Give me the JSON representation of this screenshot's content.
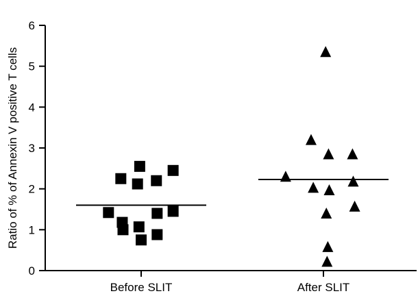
{
  "chart_data": {
    "type": "scatter",
    "ylabel": "Ratio of % of Annexin V positive T cells",
    "xlabel": "",
    "ylim": [
      0,
      6
    ],
    "yticks": [
      "0",
      "1",
      "2",
      "3",
      "4",
      "5",
      "6"
    ],
    "categories": [
      "Before SLIT",
      "After SLIT"
    ],
    "grid": false,
    "series": [
      {
        "category": "Before SLIT",
        "marker": "square",
        "mean": 1.6,
        "points": [
          {
            "offset": -0.45,
            "y": 1.42
          },
          {
            "offset": -0.28,
            "y": 2.25
          },
          {
            "offset": -0.26,
            "y": 1.18
          },
          {
            "offset": -0.25,
            "y": 1.0
          },
          {
            "offset": -0.02,
            "y": 2.55
          },
          {
            "offset": -0.05,
            "y": 2.12
          },
          {
            "offset": -0.03,
            "y": 1.07
          },
          {
            "offset": 0.0,
            "y": 0.75
          },
          {
            "offset": 0.21,
            "y": 2.2
          },
          {
            "offset": 0.22,
            "y": 1.4
          },
          {
            "offset": 0.22,
            "y": 0.88
          },
          {
            "offset": 0.44,
            "y": 2.45
          },
          {
            "offset": 0.44,
            "y": 1.45
          }
        ]
      },
      {
        "category": "After SLIT",
        "marker": "triangle",
        "mean": 2.23,
        "points": [
          {
            "offset": 0.03,
            "y": 5.35
          },
          {
            "offset": -0.17,
            "y": 3.2
          },
          {
            "offset": 0.07,
            "y": 2.85
          },
          {
            "offset": 0.4,
            "y": 2.85
          },
          {
            "offset": -0.52,
            "y": 2.3
          },
          {
            "offset": -0.14,
            "y": 2.03
          },
          {
            "offset": 0.08,
            "y": 1.97
          },
          {
            "offset": 0.41,
            "y": 2.18
          },
          {
            "offset": 0.43,
            "y": 1.57
          },
          {
            "offset": 0.04,
            "y": 1.4
          },
          {
            "offset": 0.06,
            "y": 0.58
          },
          {
            "offset": 0.05,
            "y": 0.22
          }
        ]
      }
    ]
  }
}
